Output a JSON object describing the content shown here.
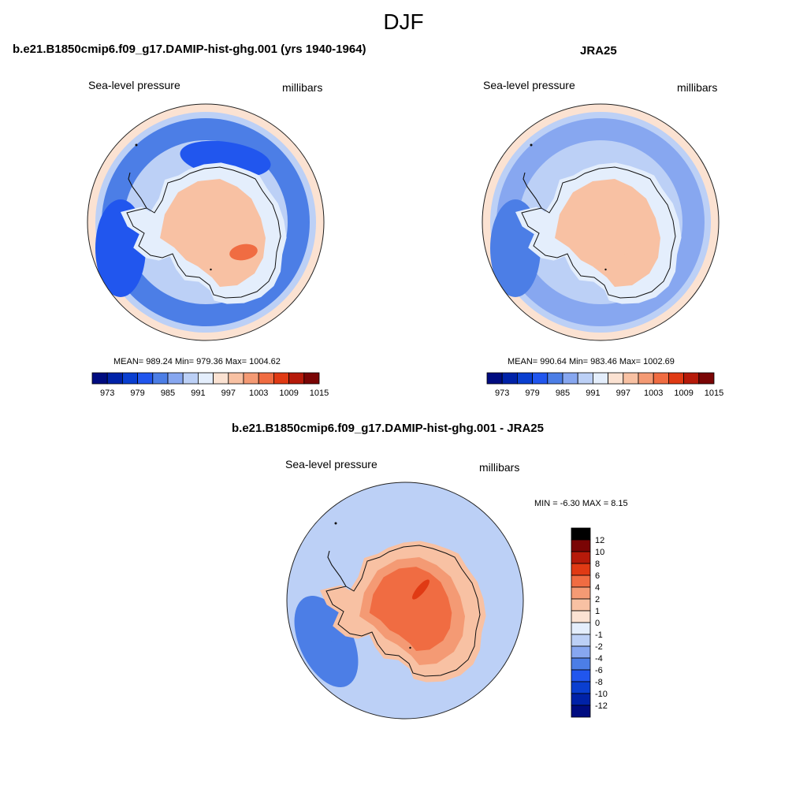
{
  "figure": {
    "title": "DJF"
  },
  "colors": {
    "model_palette": [
      "#000c80",
      "#0022a8",
      "#0a3fd0",
      "#2156ee",
      "#4c7ee6",
      "#87a7f0",
      "#bcd0f6",
      "#e4eefc",
      "#fbe2d2",
      "#f8c1a3",
      "#f49a74",
      "#f06c42",
      "#e03a14",
      "#b61a0a",
      "#7a0505"
    ],
    "diff_palette": [
      "#000c80",
      "#0022a8",
      "#0a3fd0",
      "#2156ee",
      "#4c7ee6",
      "#87a7f0",
      "#bcd0f6",
      "#e4eefc",
      "#fbe2d2",
      "#f8c1a3",
      "#f49a74",
      "#f06c42",
      "#e03a14",
      "#b61a0a",
      "#7a0505"
    ]
  },
  "chart_data": [
    {
      "type": "heatmap",
      "projection": "south-polar-stereographic",
      "title": "b.e21.B1850cmip6.f09_g17.DAMIP-hist-ghg.001 (yrs 1940-1964)",
      "variable": "Sea-level pressure",
      "units": "millibars",
      "stats": {
        "mean": 989.24,
        "min": 979.36,
        "max": 1004.62
      },
      "stats_text": "MEAN= 989.24  Min= 979.36  Max= 1004.62",
      "colorbar_levels": [
        970,
        973,
        976,
        979,
        982,
        985,
        988,
        991,
        994,
        997,
        1000,
        1003,
        1006,
        1009,
        1012,
        1015
      ],
      "colorbar_ticks": [
        "973",
        "979",
        "985",
        "991",
        "997",
        "1003",
        "1009",
        "1015"
      ],
      "regions": [
        {
          "name": "outer-ring",
          "value": 994
        },
        {
          "name": "midlatitude-band",
          "value": 988
        },
        {
          "name": "low-pressure-trough",
          "value": 983
        },
        {
          "name": "weddell-low",
          "value": 980
        },
        {
          "name": "amundsen-low",
          "value": 980
        },
        {
          "name": "coastal-ring",
          "value": 992
        },
        {
          "name": "antarctic-interior",
          "value": 999
        },
        {
          "name": "plateau-high",
          "value": 1004
        }
      ]
    },
    {
      "type": "heatmap",
      "projection": "south-polar-stereographic",
      "title": "JRA25",
      "variable": "Sea-level pressure",
      "units": "millibars",
      "stats": {
        "mean": 990.64,
        "min": 983.46,
        "max": 1002.69
      },
      "stats_text": "MEAN= 990.64  Min= 983.46  Max= 1002.69",
      "colorbar_levels": [
        970,
        973,
        976,
        979,
        982,
        985,
        988,
        991,
        994,
        997,
        1000,
        1003,
        1006,
        1009,
        1012,
        1015
      ],
      "colorbar_ticks": [
        "973",
        "979",
        "985",
        "991",
        "997",
        "1003",
        "1009",
        "1015"
      ],
      "regions": [
        {
          "name": "outer-ring",
          "value": 996
        },
        {
          "name": "midlatitude-band",
          "value": 990
        },
        {
          "name": "low-pressure-trough",
          "value": 986
        },
        {
          "name": "amundsen-low",
          "value": 984
        },
        {
          "name": "coastal-ring",
          "value": 993
        },
        {
          "name": "antarctic-interior",
          "value": 997
        },
        {
          "name": "plateau-high",
          "value": 999
        }
      ]
    },
    {
      "type": "heatmap",
      "projection": "south-polar-stereographic",
      "title": "b.e21.B1850cmip6.f09_g17.DAMIP-hist-ghg.001 - JRA25",
      "variable": "Sea-level pressure",
      "units": "millibars",
      "stats": {
        "min": -6.3,
        "max": 8.15
      },
      "stats_text": "MIN =  -6.30 MAX =   8.15",
      "colorbar_levels": [
        -14,
        -12,
        -10,
        -8,
        -6,
        -4,
        -2,
        -1,
        0,
        1,
        2,
        4,
        6,
        8,
        10,
        12,
        14
      ],
      "colorbar_ticks": [
        "12",
        "10",
        "8",
        "6",
        "4",
        "2",
        "1",
        "0",
        "-1",
        "-2",
        "-4",
        "-6",
        "-8",
        "-10",
        "-12"
      ],
      "regions": [
        {
          "name": "ocean-background",
          "value": -3
        },
        {
          "name": "outer-ring",
          "value": -1.5
        },
        {
          "name": "pacific-negative",
          "value": -5
        },
        {
          "name": "pacific-core",
          "value": -6
        },
        {
          "name": "coastal-ring",
          "value": 1.5
        },
        {
          "name": "antarctic-interior",
          "value": 3
        },
        {
          "name": "plateau-positive",
          "value": 5
        },
        {
          "name": "plateau-core",
          "value": 7
        }
      ]
    }
  ]
}
